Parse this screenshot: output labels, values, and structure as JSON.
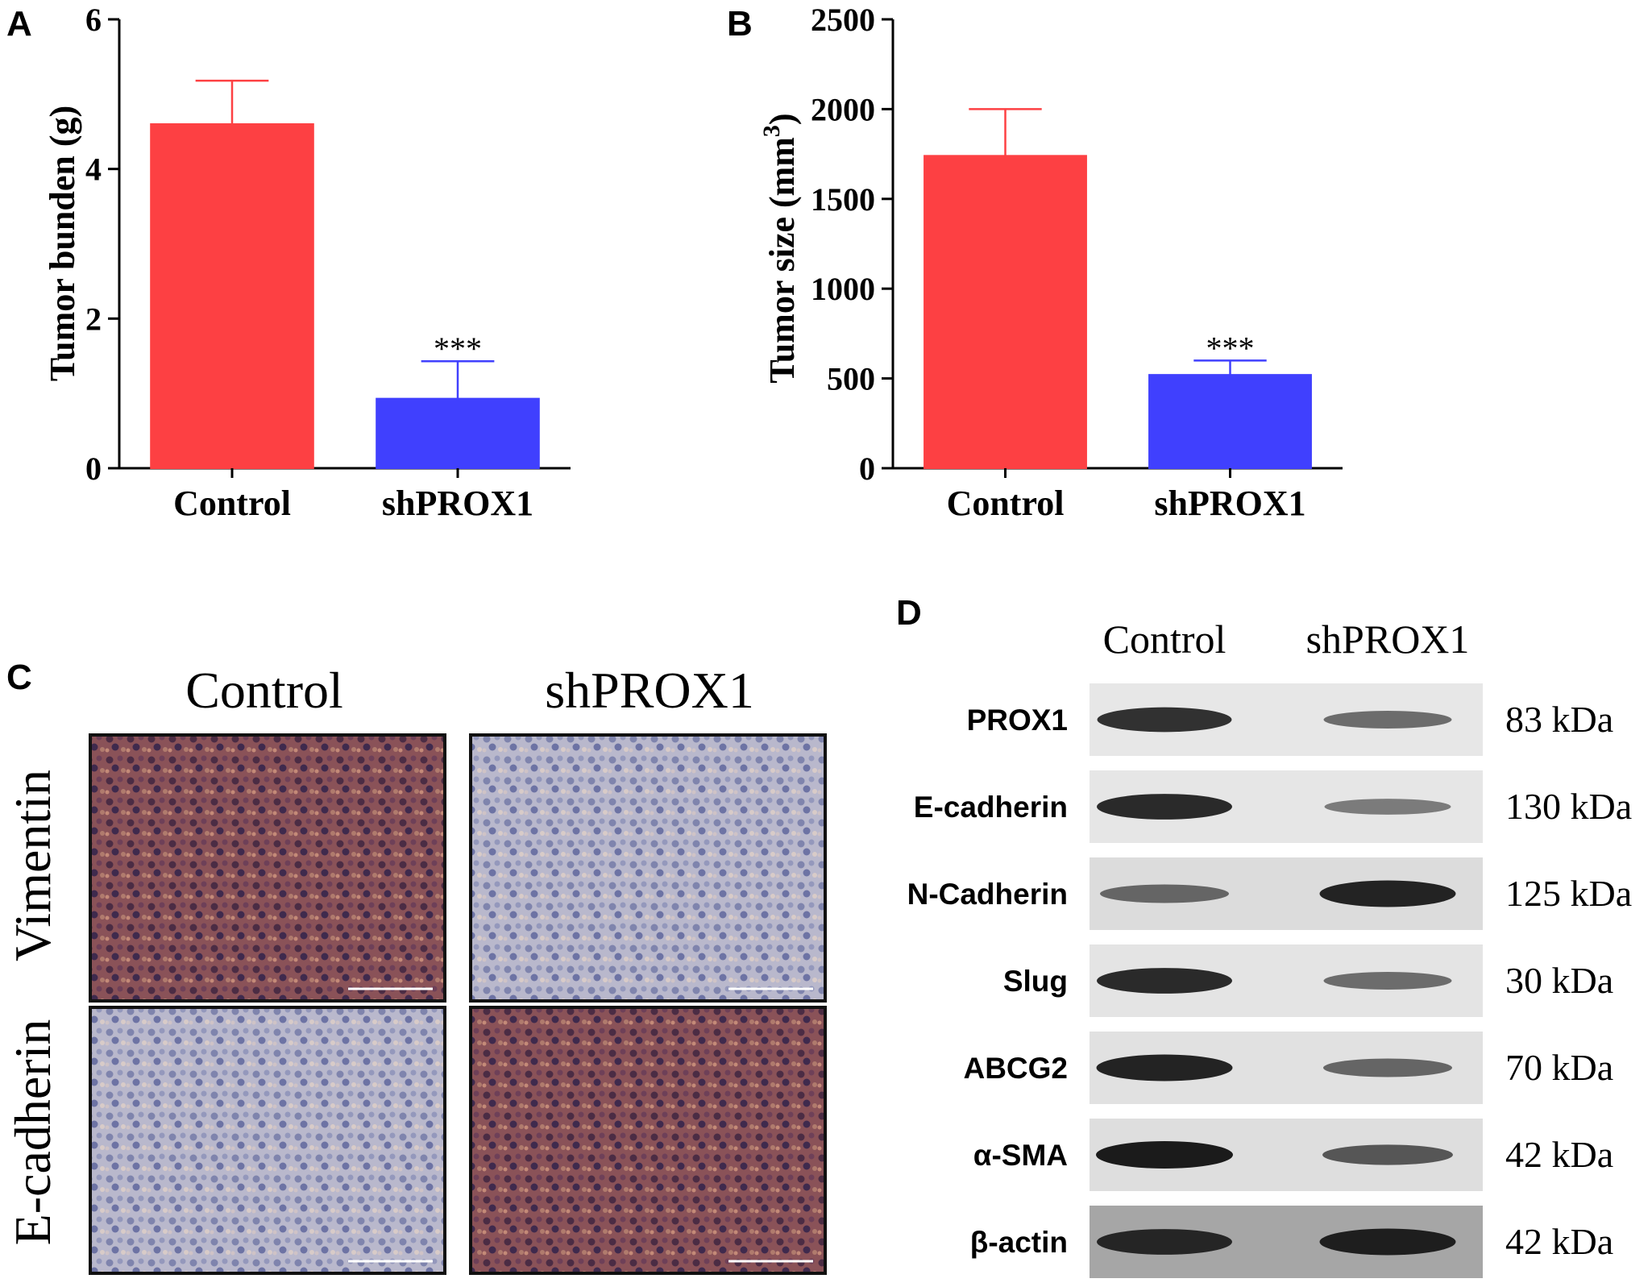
{
  "panels": {
    "a": {
      "letter": "A"
    },
    "b": {
      "letter": "B"
    },
    "c": {
      "letter": "C"
    },
    "d": {
      "letter": "D"
    }
  },
  "chart_data": [
    {
      "panel": "A",
      "type": "bar",
      "categories": [
        "Control",
        "shPROX1"
      ],
      "values": [
        4.6,
        0.93
      ],
      "errors": [
        0.58,
        0.5
      ],
      "significance": [
        "",
        "***"
      ],
      "colors": [
        "#fd4043",
        "#4040fe"
      ],
      "ylabel": "Tumor bunden (g)",
      "ylim": [
        0,
        6
      ],
      "yticks": [
        0,
        2,
        4,
        6
      ]
    },
    {
      "panel": "B",
      "type": "bar",
      "categories": [
        "Control",
        "shPROX1"
      ],
      "values": [
        1740,
        520
      ],
      "errors": [
        260,
        80
      ],
      "significance": [
        "",
        "***"
      ],
      "colors": [
        "#fd4043",
        "#4040fe"
      ],
      "ylabel_main": "Tumor size (mm",
      "ylabel_sup": "3",
      "ylabel_close": ")",
      "ylim": [
        0,
        2500
      ],
      "yticks": [
        0,
        500,
        1000,
        1500,
        2000,
        2500
      ]
    }
  ],
  "ihc": {
    "columns": [
      "Control",
      "shPROX1"
    ],
    "rows": [
      "Vimentin",
      "E-cadherin"
    ],
    "colors": {
      "high": "#8d5b5e",
      "low": "#a7a9c6",
      "border": "#111111"
    },
    "intensity": [
      [
        "high",
        "low"
      ],
      [
        "low",
        "high"
      ]
    ]
  },
  "western": {
    "columns": [
      "Control",
      "shPROX1"
    ],
    "rows": [
      {
        "protein": "PROX1",
        "kda": "83 kDa",
        "control": 0.85,
        "sh": 0.45,
        "bg": "#e7e7e7"
      },
      {
        "protein": "E-cadherin",
        "kda": "130 kDa",
        "control": 0.9,
        "sh": 0.35,
        "bg": "#e6e6e6"
      },
      {
        "protein": "N-Cadherin",
        "kda": "125 kDa",
        "control": 0.5,
        "sh": 0.95,
        "bg": "#dcdcdc"
      },
      {
        "protein": "Slug",
        "kda": "30 kDa",
        "control": 0.9,
        "sh": 0.45,
        "bg": "#e4e4e4"
      },
      {
        "protein": "ABCG2",
        "kda": "70 kDa",
        "control": 0.95,
        "sh": 0.5,
        "bg": "#e1e1e1"
      },
      {
        "protein": "α-SMA",
        "kda": "42 kDa",
        "control": 1.0,
        "sh": 0.6,
        "bg": "#dedede"
      },
      {
        "protein": "β-actin",
        "kda": "42 kDa",
        "control": 0.9,
        "sh": 0.95,
        "bg": "#a6a6a6"
      }
    ]
  }
}
